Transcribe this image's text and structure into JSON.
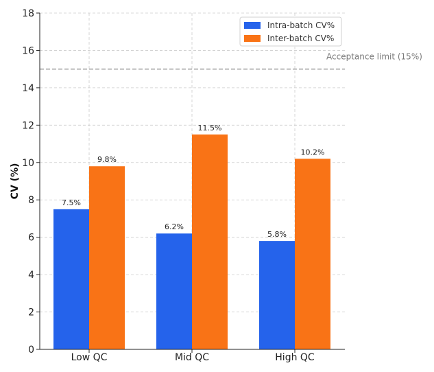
{
  "chart_data": {
    "type": "bar",
    "title": "",
    "xlabel": "",
    "ylabel": "CV (%)",
    "categories": [
      "Low QC",
      "Mid QC",
      "High QC"
    ],
    "ylim": [
      0,
      18
    ],
    "yticks": [
      0,
      2,
      4,
      6,
      8,
      10,
      12,
      14,
      16,
      18
    ],
    "grid": true,
    "legend_position": "top-right",
    "series": [
      {
        "name": "Intra-batch CV%",
        "color": "#2563eb",
        "values": [
          7.5,
          6.2,
          5.8
        ],
        "labels": [
          "7.5%",
          "6.2%",
          "5.8%"
        ]
      },
      {
        "name": "Inter-batch CV%",
        "color": "#f97316",
        "values": [
          9.8,
          11.5,
          10.2
        ],
        "labels": [
          "9.8%",
          "11.5%",
          "10.2%"
        ]
      }
    ],
    "reference_line": {
      "value": 15,
      "label": "Acceptance limit (15%)",
      "color": "#777777"
    }
  }
}
